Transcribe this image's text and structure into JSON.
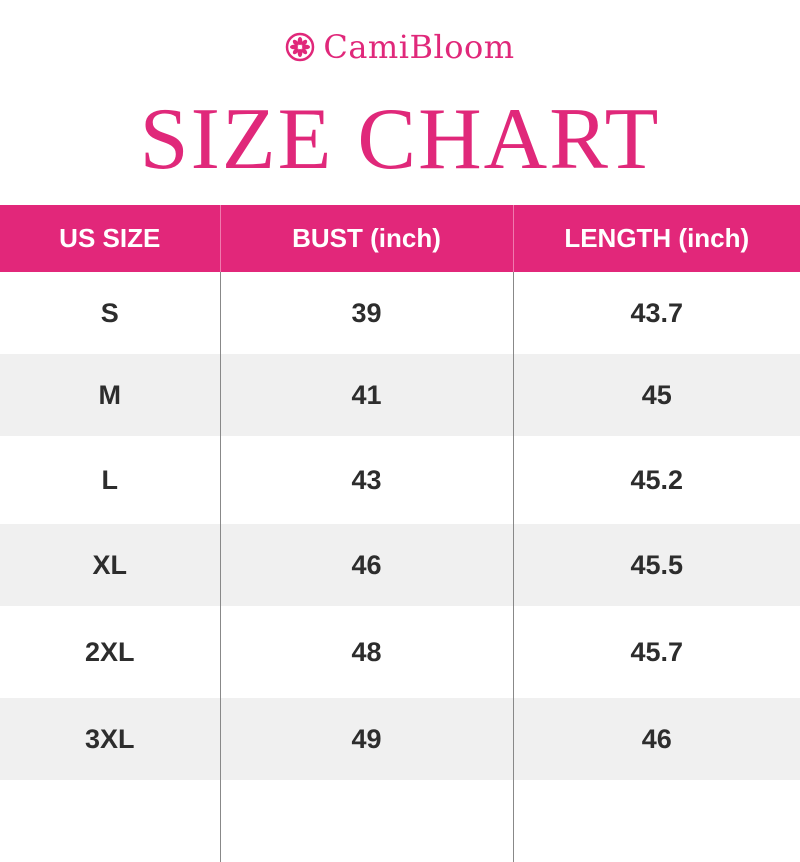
{
  "brand": {
    "name": "CamiBloom",
    "logo_icon": "flower-circle-icon",
    "color": "#e0287a"
  },
  "title": "SIZE CHART",
  "table": {
    "headers": [
      "US SIZE",
      "BUST (inch)",
      "LENGTH (inch)"
    ],
    "rows": [
      [
        "S",
        "39",
        "43.7"
      ],
      [
        "M",
        "41",
        "45"
      ],
      [
        "L",
        "43",
        "45.2"
      ],
      [
        "XL",
        "46",
        "45.5"
      ],
      [
        "2XL",
        "48",
        "45.7"
      ],
      [
        "3XL",
        "49",
        "46"
      ]
    ]
  }
}
